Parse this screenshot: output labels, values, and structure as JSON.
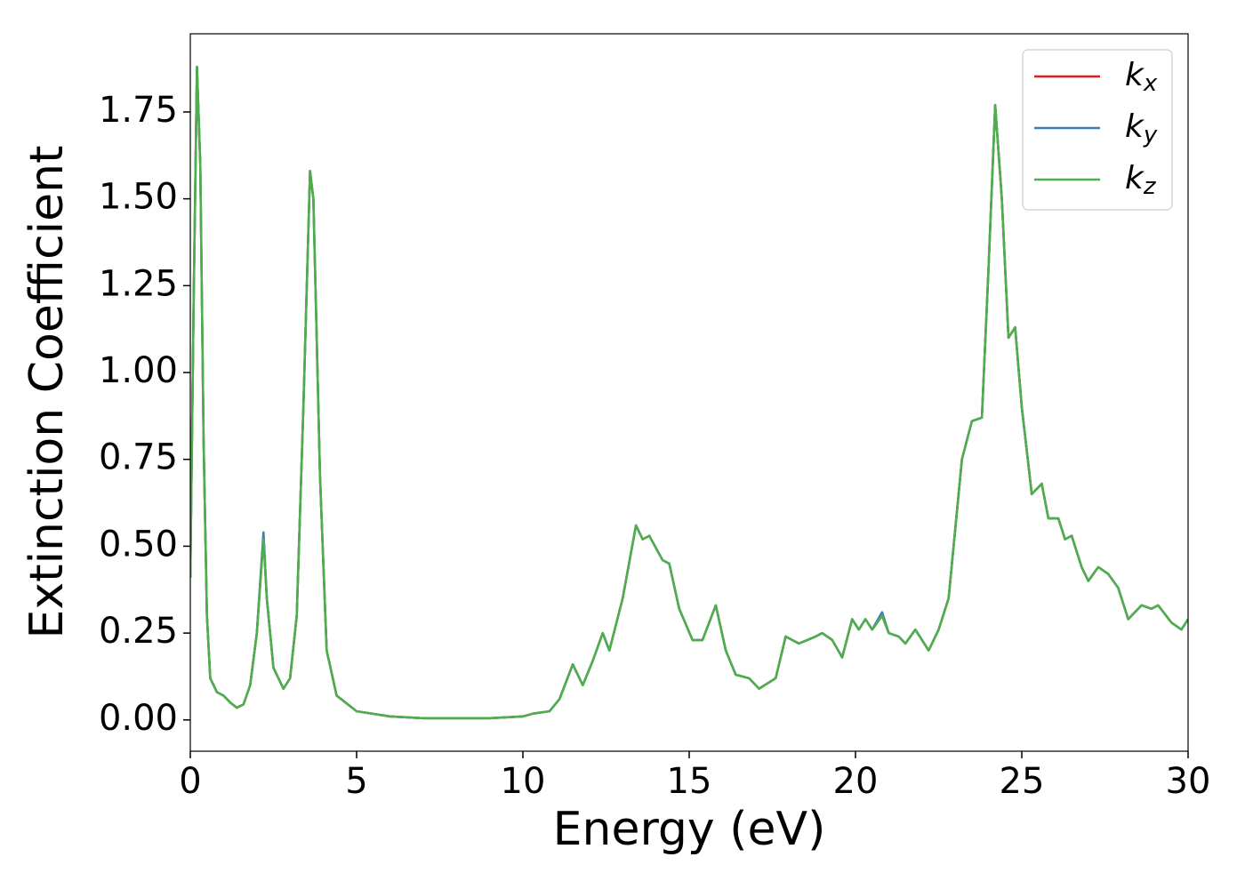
{
  "chart_data": {
    "type": "line",
    "xlabel": "Energy (eV)",
    "ylabel": "Extinction Coefficient",
    "x": [
      0,
      0.1,
      0.2,
      0.3,
      0.4,
      0.5,
      0.6,
      0.8,
      1.0,
      1.2,
      1.4,
      1.6,
      1.8,
      2.0,
      2.2,
      2.3,
      2.5,
      2.8,
      3.0,
      3.2,
      3.4,
      3.6,
      3.7,
      3.9,
      4.1,
      4.4,
      5,
      6,
      7,
      8,
      9,
      10,
      10.3,
      10.8,
      11.1,
      11.5,
      11.8,
      12.1,
      12.4,
      12.6,
      13.0,
      13.4,
      13.6,
      13.8,
      14.2,
      14.4,
      14.7,
      15.1,
      15.4,
      15.8,
      16.1,
      16.4,
      16.8,
      17.1,
      17.6,
      17.9,
      18.3,
      18.8,
      19.0,
      19.3,
      19.6,
      19.9,
      20.1,
      20.3,
      20.5,
      20.8,
      21.0,
      21.3,
      21.5,
      21.8,
      22.2,
      22.5,
      22.8,
      23.2,
      23.5,
      23.8,
      24.0,
      24.2,
      24.4,
      24.6,
      24.8,
      25.0,
      25.3,
      25.6,
      25.8,
      26.1,
      26.3,
      26.5,
      26.8,
      27.0,
      27.3,
      27.6,
      27.9,
      28.2,
      28.6,
      28.9,
      29.1,
      29.5,
      29.8,
      30
    ],
    "series": [
      {
        "name": "kx",
        "color": "#e41a1c",
        "values": [
          0.41,
          1.2,
          1.88,
          1.6,
          0.8,
          0.3,
          0.12,
          0.08,
          0.07,
          0.05,
          0.035,
          0.045,
          0.1,
          0.25,
          0.53,
          0.35,
          0.15,
          0.09,
          0.12,
          0.3,
          0.9,
          1.58,
          1.5,
          0.7,
          0.2,
          0.07,
          0.025,
          0.01,
          0.005,
          0.005,
          0.005,
          0.01,
          0.018,
          0.025,
          0.06,
          0.16,
          0.1,
          0.17,
          0.25,
          0.2,
          0.35,
          0.56,
          0.52,
          0.53,
          0.46,
          0.45,
          0.32,
          0.23,
          0.23,
          0.33,
          0.2,
          0.13,
          0.12,
          0.09,
          0.12,
          0.24,
          0.22,
          0.24,
          0.25,
          0.23,
          0.18,
          0.29,
          0.26,
          0.29,
          0.26,
          0.3,
          0.25,
          0.24,
          0.22,
          0.26,
          0.2,
          0.26,
          0.35,
          0.75,
          0.86,
          0.87,
          1.3,
          1.77,
          1.5,
          1.1,
          1.13,
          0.9,
          0.65,
          0.68,
          0.58,
          0.58,
          0.52,
          0.53,
          0.44,
          0.4,
          0.44,
          0.42,
          0.38,
          0.29,
          0.33,
          0.32,
          0.33,
          0.28,
          0.26,
          0.29
        ]
      },
      {
        "name": "ky",
        "color": "#377eb8",
        "values": [
          0.41,
          1.2,
          1.88,
          1.6,
          0.8,
          0.3,
          0.12,
          0.08,
          0.07,
          0.05,
          0.035,
          0.045,
          0.1,
          0.25,
          0.54,
          0.35,
          0.15,
          0.09,
          0.12,
          0.3,
          0.9,
          1.58,
          1.5,
          0.7,
          0.2,
          0.07,
          0.025,
          0.01,
          0.005,
          0.005,
          0.005,
          0.01,
          0.018,
          0.025,
          0.06,
          0.16,
          0.1,
          0.17,
          0.25,
          0.2,
          0.35,
          0.56,
          0.52,
          0.53,
          0.46,
          0.45,
          0.32,
          0.23,
          0.23,
          0.33,
          0.2,
          0.13,
          0.12,
          0.09,
          0.12,
          0.24,
          0.22,
          0.24,
          0.25,
          0.23,
          0.18,
          0.29,
          0.26,
          0.29,
          0.26,
          0.31,
          0.25,
          0.24,
          0.22,
          0.26,
          0.2,
          0.26,
          0.35,
          0.75,
          0.86,
          0.87,
          1.3,
          1.77,
          1.5,
          1.1,
          1.13,
          0.9,
          0.65,
          0.68,
          0.58,
          0.58,
          0.52,
          0.53,
          0.44,
          0.4,
          0.44,
          0.42,
          0.38,
          0.29,
          0.33,
          0.32,
          0.33,
          0.28,
          0.26,
          0.29
        ]
      },
      {
        "name": "kz",
        "color": "#4daf4a",
        "values": [
          0.41,
          1.2,
          1.88,
          1.6,
          0.8,
          0.3,
          0.12,
          0.08,
          0.07,
          0.05,
          0.035,
          0.045,
          0.1,
          0.25,
          0.52,
          0.35,
          0.15,
          0.09,
          0.12,
          0.3,
          0.9,
          1.58,
          1.5,
          0.7,
          0.2,
          0.07,
          0.025,
          0.01,
          0.005,
          0.005,
          0.005,
          0.01,
          0.018,
          0.025,
          0.06,
          0.16,
          0.1,
          0.17,
          0.25,
          0.2,
          0.35,
          0.56,
          0.52,
          0.53,
          0.46,
          0.45,
          0.32,
          0.23,
          0.23,
          0.33,
          0.2,
          0.13,
          0.12,
          0.09,
          0.12,
          0.24,
          0.22,
          0.24,
          0.25,
          0.23,
          0.18,
          0.29,
          0.26,
          0.29,
          0.26,
          0.3,
          0.25,
          0.24,
          0.22,
          0.26,
          0.2,
          0.26,
          0.35,
          0.75,
          0.86,
          0.87,
          1.3,
          1.77,
          1.5,
          1.1,
          1.13,
          0.9,
          0.65,
          0.68,
          0.58,
          0.58,
          0.52,
          0.53,
          0.44,
          0.4,
          0.44,
          0.42,
          0.38,
          0.29,
          0.33,
          0.32,
          0.33,
          0.28,
          0.26,
          0.29
        ]
      }
    ],
    "xlim": [
      0,
      30
    ],
    "xticks": [
      0,
      5,
      10,
      15,
      20,
      25,
      30
    ],
    "ylim": [
      -0.09,
      1.975
    ],
    "yticks": [
      {
        "value": 0,
        "label": "0.00"
      },
      {
        "value": 0.25,
        "label": "0.25"
      },
      {
        "value": 0.5,
        "label": "0.50"
      },
      {
        "value": 0.75,
        "label": "0.75"
      },
      {
        "value": 1,
        "label": "1.00"
      },
      {
        "value": 1.25,
        "label": "1.25"
      },
      {
        "value": 1.5,
        "label": "1.50"
      },
      {
        "value": 1.75,
        "label": "1.75"
      }
    ],
    "legend": "upper right"
  }
}
